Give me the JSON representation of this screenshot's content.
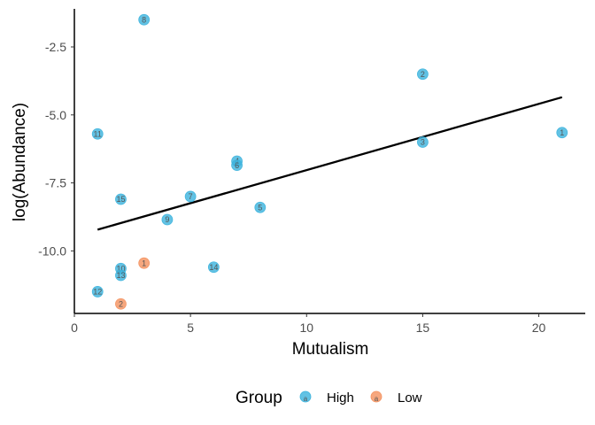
{
  "chart_data": {
    "type": "scatter",
    "xlabel": "Mutualism",
    "ylabel": "log(Abundance)",
    "xlim": [
      0,
      22
    ],
    "ylim": [
      -12.3,
      -1.1
    ],
    "x_ticks": [
      0,
      5,
      10,
      15,
      20
    ],
    "x_tick_labels": [
      "0",
      "5",
      "10",
      "15",
      "20"
    ],
    "y_ticks": [
      -2.5,
      -5,
      -7.5,
      -10
    ],
    "y_tick_labels": [
      "-2.5",
      "-5.0",
      "-7.5",
      "-10.0"
    ],
    "grid": false,
    "legend": {
      "title": "Group",
      "position": "bottom",
      "key_letter": "a",
      "entries": [
        {
          "label": "High",
          "color": "#3bb3dd"
        },
        {
          "label": "Low",
          "color": "#f4915e"
        }
      ]
    },
    "series": [
      {
        "group": "High",
        "color": "#3bb3dd",
        "points": [
          {
            "x": 3,
            "y": -1.5,
            "label": "8"
          },
          {
            "x": 15,
            "y": -3.5,
            "label": "2"
          },
          {
            "x": 21,
            "y": -5.65,
            "label": "1"
          },
          {
            "x": 1,
            "y": -5.7,
            "label": "11"
          },
          {
            "x": 15,
            "y": -6.0,
            "label": "3"
          },
          {
            "x": 7,
            "y": -6.7,
            "label": "4"
          },
          {
            "x": 7,
            "y": -6.85,
            "label": "6"
          },
          {
            "x": 5,
            "y": -8.0,
            "label": "7"
          },
          {
            "x": 2,
            "y": -8.1,
            "label": "15"
          },
          {
            "x": 8,
            "y": -8.4,
            "label": "5"
          },
          {
            "x": 4,
            "y": -8.85,
            "label": "9"
          },
          {
            "x": 6,
            "y": -10.6,
            "label": "14"
          },
          {
            "x": 2,
            "y": -10.65,
            "label": "10"
          },
          {
            "x": 2,
            "y": -10.9,
            "label": "13"
          },
          {
            "x": 1,
            "y": -11.5,
            "label": "12"
          }
        ]
      },
      {
        "group": "Low",
        "color": "#f4915e",
        "points": [
          {
            "x": 3,
            "y": -10.45,
            "label": "1"
          },
          {
            "x": 2,
            "y": -11.95,
            "label": "2"
          }
        ]
      }
    ],
    "trend_line": {
      "x": [
        1,
        21
      ],
      "y": [
        -9.22,
        -4.35
      ],
      "color": "#000000"
    }
  }
}
